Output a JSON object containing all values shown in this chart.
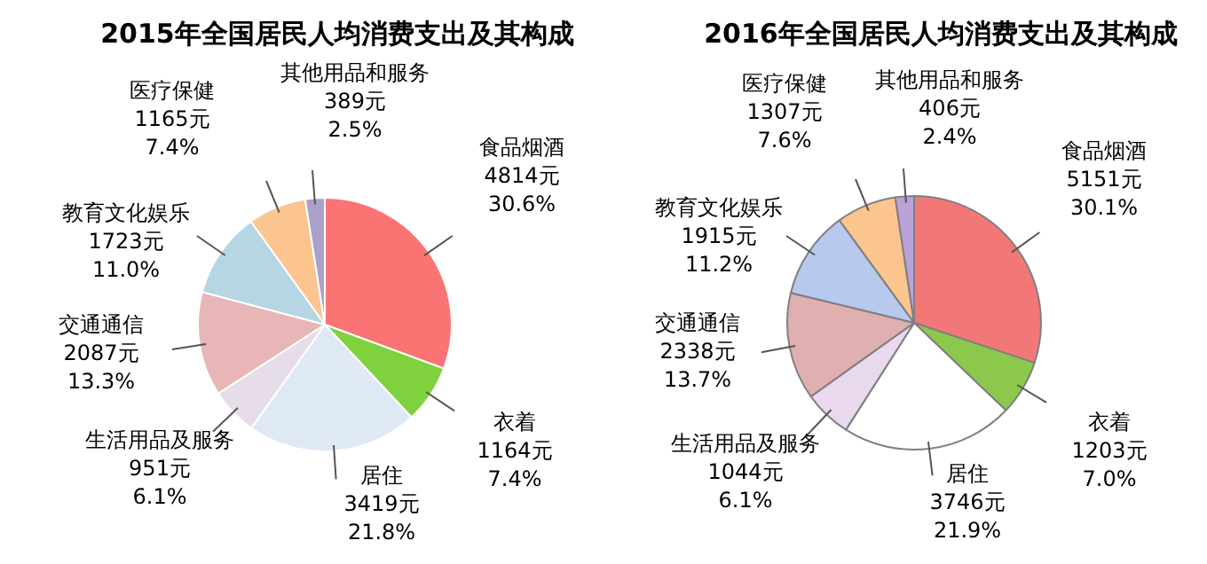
{
  "chart_data": [
    {
      "type": "pie",
      "title": "2015年全国居民人均消费支出及其构成",
      "categories": [
        "食品烟酒",
        "衣着",
        "居住",
        "生活用品及服务",
        "交通通信",
        "教育文化娱乐",
        "医疗保健",
        "其他用品和服务"
      ],
      "values": [
        4814,
        1164,
        3419,
        951,
        2087,
        1723,
        1165,
        389
      ],
      "value_labels": [
        "4814元\n30.6%",
        "1164元\n7.4%",
        "3419元\n21.8%",
        "951元\n6.1%",
        "2087元\n13.3%",
        "1723元\n11.0%",
        "1165元\n7.4%",
        "389元\n2.5%"
      ],
      "colors": [
        "#fa7474",
        "#7fd23e",
        "#dfe9f4",
        "#e6dde8",
        "#e8b6b6",
        "#b5d6e2",
        "#fcc590",
        "#a9a1c9"
      ],
      "legend": false
    },
    {
      "type": "pie",
      "title": "2016年全国居民人均消费支出及其构成",
      "categories": [
        "食品烟酒",
        "衣着",
        "居住",
        "生活用品及服务",
        "交通通信",
        "教育文化娱乐",
        "医疗保健",
        "其他用品和服务"
      ],
      "values": [
        5151,
        1203,
        3746,
        1044,
        2338,
        1915,
        1307,
        406
      ],
      "value_labels": [
        "5151元\n30.1%",
        "1203元\n7.0%",
        "3746元\n21.9%",
        "1044元\n6.1%",
        "2338元\n13.7%",
        "1915元\n11.2%",
        "1307元\n7.6%",
        "406元\n2.4%"
      ],
      "colors": [
        "#f27878",
        "#8cc84c",
        "#ffffff",
        "#e9d9ef",
        "#e0b0b0",
        "#b7c9ed",
        "#fcc48e",
        "#b9a3d8"
      ],
      "legend": false
    }
  ]
}
